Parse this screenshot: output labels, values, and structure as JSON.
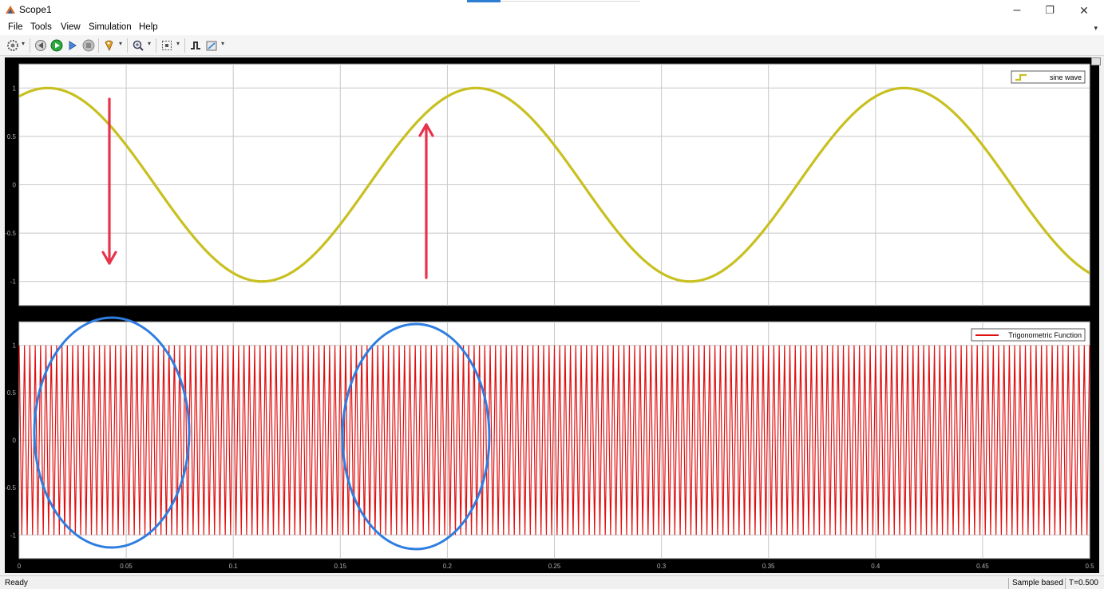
{
  "window": {
    "title": "Scope1",
    "minimize_glyph": "–",
    "maximize_glyph": "❐",
    "close_glyph": "✕"
  },
  "menu": {
    "items": [
      "File",
      "Tools",
      "View",
      "Simulation",
      "Help"
    ],
    "overflow_glyph": "▾"
  },
  "toolbar": {
    "icons": [
      "settings-icon",
      "step-back-icon",
      "run-icon",
      "step-forward-icon",
      "stop-icon",
      "highlight-icon",
      "zoom-icon",
      "fit-to-view-icon",
      "triggers-icon",
      "measurements-icon"
    ]
  },
  "plots": [
    {
      "legend": "sine wave",
      "y_ticks": [
        "1",
        "0.5",
        "0",
        "-0.5",
        "-1"
      ],
      "line_color": "#c8c020"
    },
    {
      "legend": "Trigonometric Function",
      "y_ticks": [
        "1",
        "0.5",
        "0",
        "-0.5",
        "-1"
      ],
      "line_color": "#e01010"
    }
  ],
  "x_ticks": [
    "0",
    "0.05",
    "0.1",
    "0.15",
    "0.2",
    "0.25",
    "0.3",
    "0.35",
    "0.4",
    "0.45",
    "0.5"
  ],
  "chart_data": [
    {
      "type": "line",
      "series": [
        {
          "name": "sine wave",
          "function": "sin",
          "frequency_hz": 5,
          "phase_rad": 1.15,
          "amplitude": 1
        }
      ],
      "xlim": [
        0,
        0.5
      ],
      "ylim": [
        -1.25,
        1.25
      ],
      "grid": true,
      "legend_position": "top-right"
    },
    {
      "type": "line",
      "series": [
        {
          "name": "Trigonometric Function",
          "amplitude": 1,
          "approx_cycles_shown": 200
        }
      ],
      "xlim": [
        0,
        0.5
      ],
      "ylim": [
        -1.25,
        1.25
      ],
      "grid": true,
      "legend_position": "top-right"
    }
  ],
  "annotations": {
    "arrow_color": "#e8324a",
    "circle_color": "#2e7de0"
  },
  "status": {
    "left": "Ready",
    "mode": "Sample based",
    "time": "T=0.500"
  }
}
